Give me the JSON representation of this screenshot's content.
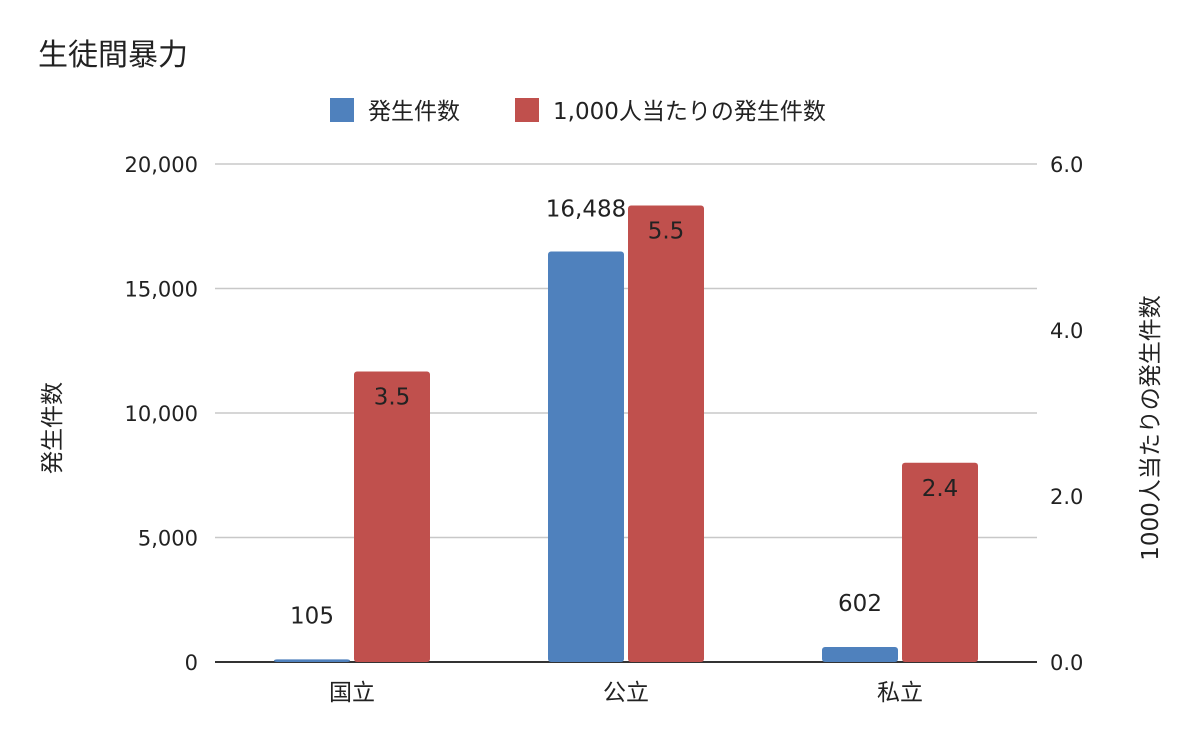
{
  "chart_data": {
    "type": "bar",
    "title": "生徒間暴力",
    "categories": [
      "国立",
      "公立",
      "私立"
    ],
    "series": [
      {
        "name": "発生件数",
        "values": [
          105,
          16488,
          602
        ],
        "data_labels": [
          "105",
          "16,488",
          "602"
        ],
        "axis": "left",
        "color": "#4f81bd"
      },
      {
        "name": "1,000人当たりの発生件数",
        "values": [
          3.5,
          5.5,
          2.4
        ],
        "data_labels": [
          "3.5",
          "5.5",
          "2.4"
        ],
        "axis": "right",
        "color": "#c0504d"
      }
    ],
    "ylabel": "発生件数",
    "y2label": "1000人当たりの発生件数",
    "ylim": [
      0,
      20000
    ],
    "y2lim": [
      0,
      6
    ],
    "y_ticks": [
      "0",
      "5,000",
      "10,000",
      "15,000",
      "20,000"
    ],
    "y2_ticks": [
      "0.0",
      "2.0",
      "4.0",
      "6.0"
    ],
    "legend_position": "top-center",
    "grid": true
  }
}
